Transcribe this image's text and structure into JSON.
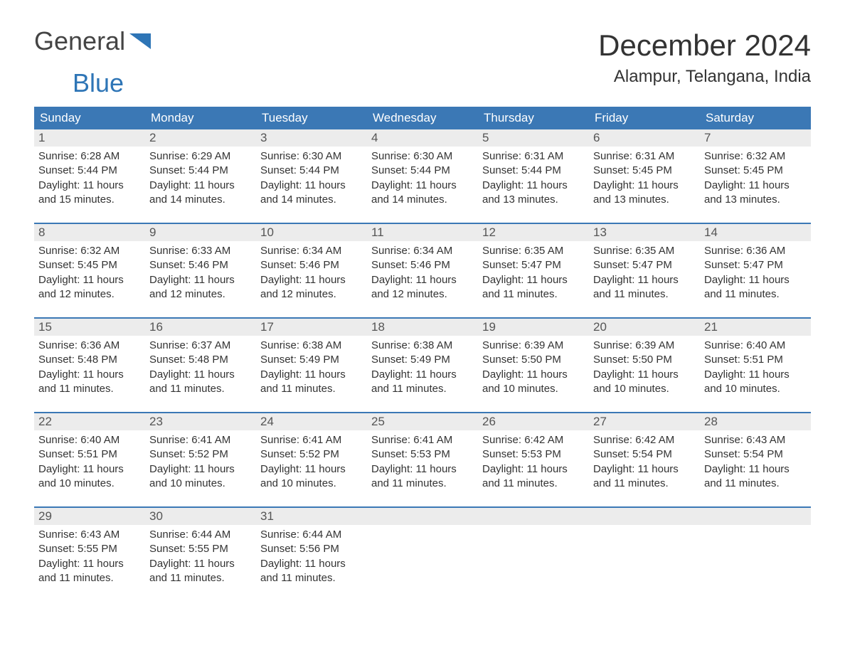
{
  "logo": {
    "word1": "General",
    "word2": "Blue"
  },
  "title": "December 2024",
  "location": "Alampur, Telangana, India",
  "colors": {
    "header_bg": "#3b78b5",
    "header_text": "#ffffff",
    "daynum_bg": "#ececec",
    "daynum_text": "#555555",
    "body_text": "#333333",
    "rule": "#3b78b5",
    "logo_gray": "#444444",
    "logo_blue": "#2e75b6",
    "page_bg": "#ffffff"
  },
  "typography": {
    "title_fontsize": 42,
    "location_fontsize": 24,
    "dow_fontsize": 17,
    "daynum_fontsize": 17,
    "body_fontsize": 15,
    "logo_fontsize": 36
  },
  "days_of_week": [
    "Sunday",
    "Monday",
    "Tuesday",
    "Wednesday",
    "Thursday",
    "Friday",
    "Saturday"
  ],
  "weeks": [
    [
      {
        "n": "1",
        "sr": "Sunrise: 6:28 AM",
        "ss": "Sunset: 5:44 PM",
        "d1": "Daylight: 11 hours",
        "d2": "and 15 minutes."
      },
      {
        "n": "2",
        "sr": "Sunrise: 6:29 AM",
        "ss": "Sunset: 5:44 PM",
        "d1": "Daylight: 11 hours",
        "d2": "and 14 minutes."
      },
      {
        "n": "3",
        "sr": "Sunrise: 6:30 AM",
        "ss": "Sunset: 5:44 PM",
        "d1": "Daylight: 11 hours",
        "d2": "and 14 minutes."
      },
      {
        "n": "4",
        "sr": "Sunrise: 6:30 AM",
        "ss": "Sunset: 5:44 PM",
        "d1": "Daylight: 11 hours",
        "d2": "and 14 minutes."
      },
      {
        "n": "5",
        "sr": "Sunrise: 6:31 AM",
        "ss": "Sunset: 5:44 PM",
        "d1": "Daylight: 11 hours",
        "d2": "and 13 minutes."
      },
      {
        "n": "6",
        "sr": "Sunrise: 6:31 AM",
        "ss": "Sunset: 5:45 PM",
        "d1": "Daylight: 11 hours",
        "d2": "and 13 minutes."
      },
      {
        "n": "7",
        "sr": "Sunrise: 6:32 AM",
        "ss": "Sunset: 5:45 PM",
        "d1": "Daylight: 11 hours",
        "d2": "and 13 minutes."
      }
    ],
    [
      {
        "n": "8",
        "sr": "Sunrise: 6:32 AM",
        "ss": "Sunset: 5:45 PM",
        "d1": "Daylight: 11 hours",
        "d2": "and 12 minutes."
      },
      {
        "n": "9",
        "sr": "Sunrise: 6:33 AM",
        "ss": "Sunset: 5:46 PM",
        "d1": "Daylight: 11 hours",
        "d2": "and 12 minutes."
      },
      {
        "n": "10",
        "sr": "Sunrise: 6:34 AM",
        "ss": "Sunset: 5:46 PM",
        "d1": "Daylight: 11 hours",
        "d2": "and 12 minutes."
      },
      {
        "n": "11",
        "sr": "Sunrise: 6:34 AM",
        "ss": "Sunset: 5:46 PM",
        "d1": "Daylight: 11 hours",
        "d2": "and 12 minutes."
      },
      {
        "n": "12",
        "sr": "Sunrise: 6:35 AM",
        "ss": "Sunset: 5:47 PM",
        "d1": "Daylight: 11 hours",
        "d2": "and 11 minutes."
      },
      {
        "n": "13",
        "sr": "Sunrise: 6:35 AM",
        "ss": "Sunset: 5:47 PM",
        "d1": "Daylight: 11 hours",
        "d2": "and 11 minutes."
      },
      {
        "n": "14",
        "sr": "Sunrise: 6:36 AM",
        "ss": "Sunset: 5:47 PM",
        "d1": "Daylight: 11 hours",
        "d2": "and 11 minutes."
      }
    ],
    [
      {
        "n": "15",
        "sr": "Sunrise: 6:36 AM",
        "ss": "Sunset: 5:48 PM",
        "d1": "Daylight: 11 hours",
        "d2": "and 11 minutes."
      },
      {
        "n": "16",
        "sr": "Sunrise: 6:37 AM",
        "ss": "Sunset: 5:48 PM",
        "d1": "Daylight: 11 hours",
        "d2": "and 11 minutes."
      },
      {
        "n": "17",
        "sr": "Sunrise: 6:38 AM",
        "ss": "Sunset: 5:49 PM",
        "d1": "Daylight: 11 hours",
        "d2": "and 11 minutes."
      },
      {
        "n": "18",
        "sr": "Sunrise: 6:38 AM",
        "ss": "Sunset: 5:49 PM",
        "d1": "Daylight: 11 hours",
        "d2": "and 11 minutes."
      },
      {
        "n": "19",
        "sr": "Sunrise: 6:39 AM",
        "ss": "Sunset: 5:50 PM",
        "d1": "Daylight: 11 hours",
        "d2": "and 10 minutes."
      },
      {
        "n": "20",
        "sr": "Sunrise: 6:39 AM",
        "ss": "Sunset: 5:50 PM",
        "d1": "Daylight: 11 hours",
        "d2": "and 10 minutes."
      },
      {
        "n": "21",
        "sr": "Sunrise: 6:40 AM",
        "ss": "Sunset: 5:51 PM",
        "d1": "Daylight: 11 hours",
        "d2": "and 10 minutes."
      }
    ],
    [
      {
        "n": "22",
        "sr": "Sunrise: 6:40 AM",
        "ss": "Sunset: 5:51 PM",
        "d1": "Daylight: 11 hours",
        "d2": "and 10 minutes."
      },
      {
        "n": "23",
        "sr": "Sunrise: 6:41 AM",
        "ss": "Sunset: 5:52 PM",
        "d1": "Daylight: 11 hours",
        "d2": "and 10 minutes."
      },
      {
        "n": "24",
        "sr": "Sunrise: 6:41 AM",
        "ss": "Sunset: 5:52 PM",
        "d1": "Daylight: 11 hours",
        "d2": "and 10 minutes."
      },
      {
        "n": "25",
        "sr": "Sunrise: 6:41 AM",
        "ss": "Sunset: 5:53 PM",
        "d1": "Daylight: 11 hours",
        "d2": "and 11 minutes."
      },
      {
        "n": "26",
        "sr": "Sunrise: 6:42 AM",
        "ss": "Sunset: 5:53 PM",
        "d1": "Daylight: 11 hours",
        "d2": "and 11 minutes."
      },
      {
        "n": "27",
        "sr": "Sunrise: 6:42 AM",
        "ss": "Sunset: 5:54 PM",
        "d1": "Daylight: 11 hours",
        "d2": "and 11 minutes."
      },
      {
        "n": "28",
        "sr": "Sunrise: 6:43 AM",
        "ss": "Sunset: 5:54 PM",
        "d1": "Daylight: 11 hours",
        "d2": "and 11 minutes."
      }
    ],
    [
      {
        "n": "29",
        "sr": "Sunrise: 6:43 AM",
        "ss": "Sunset: 5:55 PM",
        "d1": "Daylight: 11 hours",
        "d2": "and 11 minutes."
      },
      {
        "n": "30",
        "sr": "Sunrise: 6:44 AM",
        "ss": "Sunset: 5:55 PM",
        "d1": "Daylight: 11 hours",
        "d2": "and 11 minutes."
      },
      {
        "n": "31",
        "sr": "Sunrise: 6:44 AM",
        "ss": "Sunset: 5:56 PM",
        "d1": "Daylight: 11 hours",
        "d2": "and 11 minutes."
      },
      {
        "n": "",
        "sr": "",
        "ss": "",
        "d1": "",
        "d2": ""
      },
      {
        "n": "",
        "sr": "",
        "ss": "",
        "d1": "",
        "d2": ""
      },
      {
        "n": "",
        "sr": "",
        "ss": "",
        "d1": "",
        "d2": ""
      },
      {
        "n": "",
        "sr": "",
        "ss": "",
        "d1": "",
        "d2": ""
      }
    ]
  ]
}
